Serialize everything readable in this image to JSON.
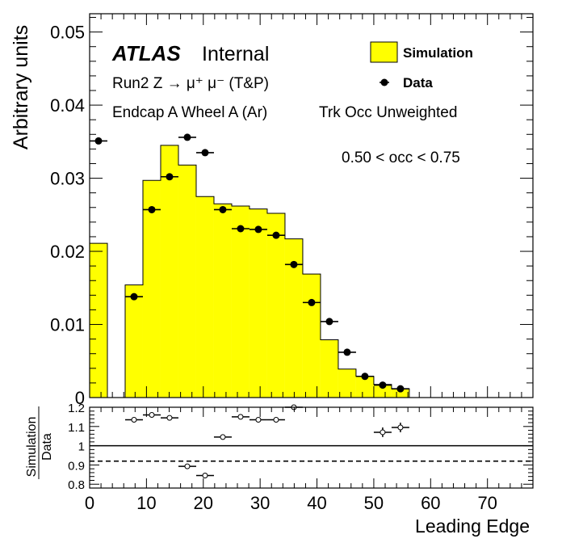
{
  "chart_data": [
    {
      "type": "bar",
      "panel": "main",
      "ylabel": "Arbitrary units",
      "xlim": [
        0,
        78
      ],
      "ylim": [
        0,
        0.0525
      ],
      "yticks": [
        "0",
        "0.01",
        "0.02",
        "0.03",
        "0.04",
        "0.05"
      ],
      "bin_width": 3.125,
      "annotations": {
        "atlas": "ATLAS",
        "internal": "Internal",
        "line1": "Run2 Z → μ⁺ μ⁻ (T&P)",
        "line2": "Endcap A Wheel A (Ar)",
        "line3": "Trk Occ Unweighted",
        "line4": "0.50 < occ < 0.75"
      },
      "legend": {
        "position": "top-right",
        "entries": [
          "Simulation",
          "Data"
        ]
      },
      "colors": {
        "simulation": "#ffff00",
        "data": "#000000"
      },
      "series": [
        {
          "name": "Simulation",
          "kind": "histogram",
          "bin_low": [
            0,
            3.125,
            6.25,
            9.375,
            12.5,
            15.625,
            18.75,
            21.875,
            25,
            28.125,
            31.25,
            34.375,
            37.5,
            40.625,
            43.75,
            46.875,
            50,
            53.125
          ],
          "values": [
            0.0211,
            0,
            0.0154,
            0.0297,
            0.0345,
            0.0318,
            0.0275,
            0.0265,
            0.0262,
            0.0258,
            0.0252,
            0.0217,
            0.0169,
            0.0079,
            0.0039,
            0.0029,
            0.0018,
            0.0012
          ]
        },
        {
          "name": "Data",
          "kind": "points",
          "x": [
            1.5625,
            7.8125,
            10.9375,
            14.0625,
            17.1875,
            20.3125,
            23.4375,
            26.5625,
            29.6875,
            32.8125,
            35.9375,
            39.0625,
            42.1875,
            45.3125,
            48.4375,
            51.5625,
            54.6875
          ],
          "values": [
            0.0351,
            0.0138,
            0.0257,
            0.0302,
            0.0356,
            0.0335,
            0.0257,
            0.0231,
            0.023,
            0.0222,
            0.0182,
            0.013,
            0.0104,
            0.0062,
            0.0029,
            0.0017,
            0.0012
          ]
        }
      ]
    },
    {
      "type": "scatter",
      "panel": "ratio",
      "ylabel_top": "Simulation",
      "ylabel_bottom": "Data",
      "xlabel": "Leading Edge",
      "xlim": [
        0,
        78
      ],
      "ylim": [
        0.78,
        1.2
      ],
      "yticks": [
        "0.8",
        "0.9",
        "1",
        "1.1",
        "1.2"
      ],
      "xticks": [
        "0",
        "10",
        "20",
        "30",
        "40",
        "50",
        "60",
        "70"
      ],
      "reference_lines": [
        {
          "y": 1.0,
          "style": "solid"
        },
        {
          "y": 0.92,
          "style": "dashed"
        }
      ],
      "series": [
        {
          "name": "Simulation/Data",
          "x": [
            7.8125,
            10.9375,
            14.0625,
            17.1875,
            20.3125,
            23.4375,
            26.5625,
            29.6875,
            32.8125,
            35.9375,
            51.5625,
            54.6875
          ],
          "values": [
            1.135,
            1.16,
            1.145,
            0.893,
            0.845,
            1.045,
            1.15,
            1.135,
            1.135,
            1.2,
            1.07,
            1.095
          ],
          "yerr": [
            0.006,
            0.006,
            0.006,
            0.006,
            0.006,
            0.006,
            0.006,
            0.006,
            0.006,
            0.006,
            0.025,
            0.025
          ]
        }
      ]
    }
  ]
}
